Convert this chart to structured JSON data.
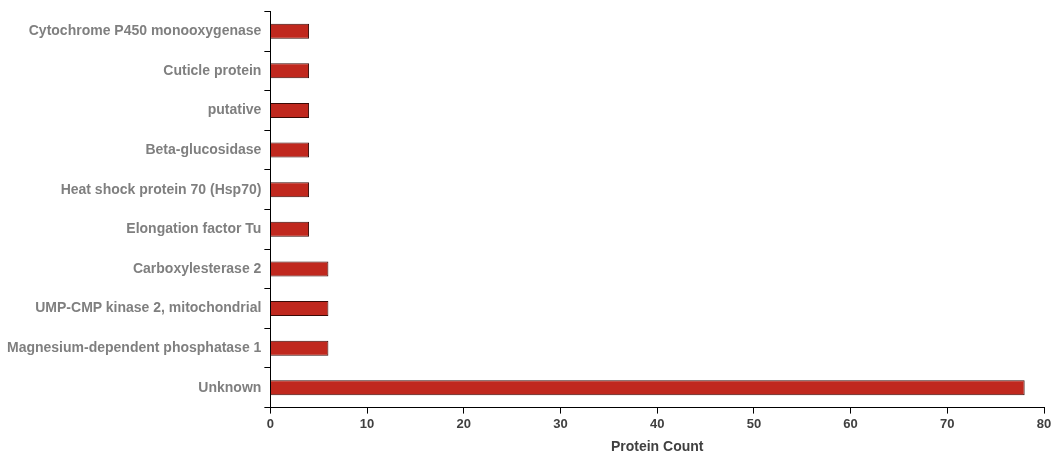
{
  "chart_data": {
    "type": "bar",
    "orientation": "horizontal",
    "xlabel": "Protein Count",
    "categories": [
      "Cytochrome P450 monooxygenase",
      "Cuticle protein",
      "putative",
      "Beta-glucosidase",
      "Heat shock protein 70 (Hsp70)",
      "Elongation factor Tu",
      "Carboxylesterase 2",
      "UMP-CMP kinase 2, mitochondrial",
      "Magnesium-dependent phosphatase 1",
      "Unknown"
    ],
    "values": [
      4,
      4,
      4,
      4,
      4,
      4,
      6,
      6,
      6,
      78
    ],
    "color": "#c0281e",
    "xlim": [
      0,
      80
    ],
    "xticks": [
      0,
      10,
      20,
      30,
      40,
      50,
      60,
      70,
      80
    ],
    "grid": false,
    "legend": false
  }
}
